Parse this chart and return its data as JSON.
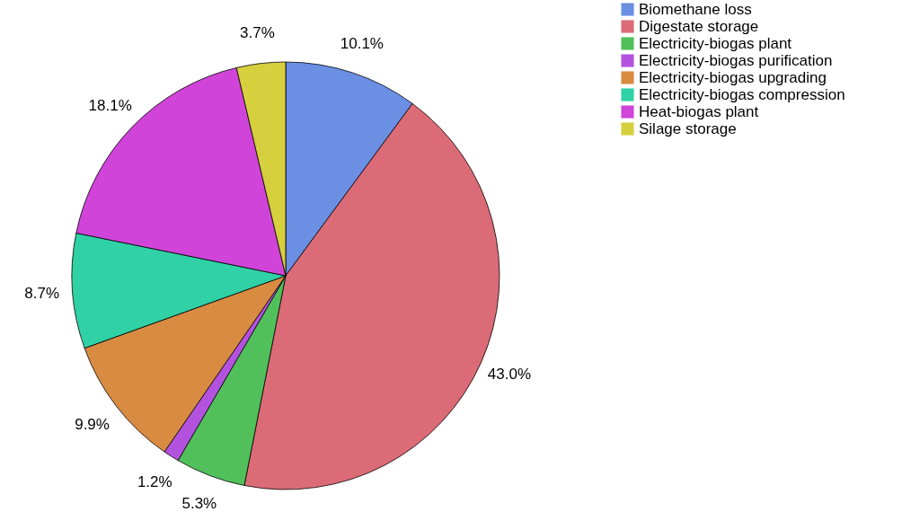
{
  "chart_data": {
    "type": "pie",
    "categories": [
      "Biomethane loss",
      "Digestate storage",
      "Electricity-biogas plant",
      "Electricity-biogas purification",
      "Electricity-biogas upgrading",
      "Electricity-biogas compression",
      "Heat-biogas plant",
      "Silage storage"
    ],
    "values": [
      10.1,
      43.0,
      5.3,
      1.2,
      9.9,
      8.7,
      18.1,
      3.7
    ],
    "colors": [
      "#6a8fe3",
      "#dc6b78",
      "#52c05a",
      "#b452e0",
      "#d98b42",
      "#2fd1a5",
      "#d144d9",
      "#d6cf3e"
    ],
    "value_labels": [
      "10.1%",
      "43.0%",
      "5.3%",
      "1.2%",
      "9.9%",
      "8.7%",
      "18.1%",
      "3.7%"
    ],
    "legend": "top right"
  }
}
